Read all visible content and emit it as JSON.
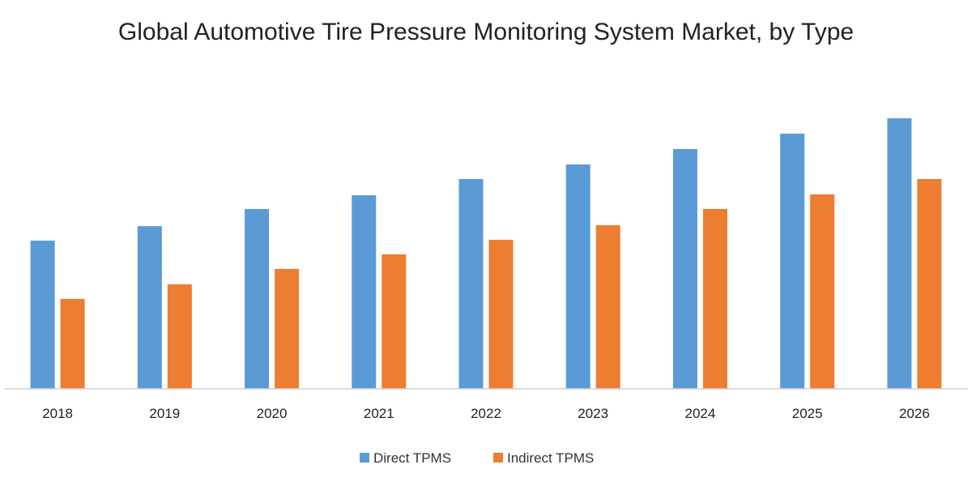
{
  "chart_data": {
    "type": "bar",
    "title": "Global Automotive Tire Pressure Monitoring System Market, by Type",
    "xlabel": "",
    "ylabel": "",
    "categories": [
      "2018",
      "2019",
      "2020",
      "2021",
      "2022",
      "2023",
      "2024",
      "2025",
      "2026"
    ],
    "series": [
      {
        "name": "Direct TPMS",
        "color": "#5B9BD5",
        "values": [
          17.3,
          19.0,
          21.0,
          22.6,
          24.5,
          26.2,
          28.0,
          29.8,
          31.6
        ]
      },
      {
        "name": "Indirect TPMS",
        "color": "#ED7D31",
        "values": [
          10.5,
          12.2,
          14.0,
          15.7,
          17.4,
          19.1,
          21.0,
          22.7,
          24.5
        ]
      }
    ],
    "ylim": [
      0,
      35
    ],
    "grid": false,
    "legend_position": "bottom"
  }
}
